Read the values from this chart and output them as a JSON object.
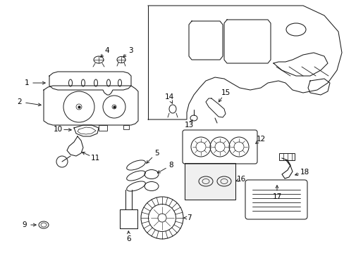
{
  "background_color": "#ffffff",
  "line_color": "#1a1a1a",
  "text_color": "#000000",
  "figsize": [
    4.89,
    3.6
  ],
  "dpi": 100,
  "label_fontsize": 7.5,
  "line_width": 0.75
}
